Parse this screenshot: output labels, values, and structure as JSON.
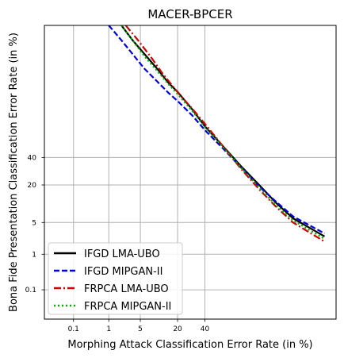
{
  "chart_data": {
    "type": "line",
    "title": "MACER-BPCER",
    "xlabel": "Morphing Attack Classification Error Rate (in %)",
    "ylabel": "Bona Fide Presentation Classification Error Rate (in %)",
    "scale": "probit",
    "xlim": [
      0.01,
      99.5
    ],
    "ylim": [
      0.01,
      99.5
    ],
    "xticks": [
      0.1,
      1,
      5,
      20,
      40
    ],
    "yticks": [
      0.1,
      1,
      5,
      20,
      40
    ],
    "grid": true,
    "legend_position": "lower-left",
    "series": [
      {
        "name": "IFGD LMA-UBO",
        "color": "#000000",
        "style": "solid",
        "x": [
          2.0,
          3.5,
          6.0,
          10.0,
          15.0,
          20.0,
          30.0,
          40.0,
          55.0,
          70.0,
          82.0,
          90.0,
          95.0,
          99.0
        ],
        "y": [
          99.5,
          98.8,
          97.5,
          95.0,
          91.0,
          87.5,
          78.0,
          66.0,
          50.0,
          33.0,
          20.0,
          11.0,
          6.0,
          2.6
        ]
      },
      {
        "name": "IFGD MIPGAN-II",
        "color": "#0000dd",
        "style": "dashed",
        "x": [
          1.0,
          2.0,
          3.5,
          6.0,
          10.0,
          15.0,
          20.0,
          30.0,
          40.0,
          55.0,
          70.0,
          82.0,
          90.0,
          95.0,
          99.0
        ],
        "y": [
          99.5,
          98.8,
          97.5,
          95.0,
          91.5,
          87.0,
          83.0,
          74.0,
          63.0,
          48.0,
          32.0,
          19.0,
          11.5,
          6.5,
          3.0
        ]
      },
      {
        "name": "FRPCA LMA-UBO",
        "color": "#cc0000",
        "style": "dashdot",
        "x": [
          2.5,
          4.5,
          8.0,
          12.0,
          17.0,
          22.0,
          30.0,
          40.0,
          55.0,
          70.0,
          82.0,
          90.0,
          95.0,
          99.0
        ],
        "y": [
          99.5,
          98.8,
          97.0,
          94.0,
          90.0,
          85.5,
          78.5,
          68.0,
          50.0,
          31.0,
          17.5,
          9.5,
          5.0,
          2.0
        ]
      },
      {
        "name": "FRPCA MIPGAN-II",
        "color": "#00aa00",
        "style": "dotted",
        "x": [
          2.0,
          3.5,
          6.0,
          10.0,
          15.0,
          20.0,
          30.0,
          40.0,
          55.0,
          70.0,
          82.0,
          90.0,
          95.0,
          99.0
        ],
        "y": [
          99.5,
          98.8,
          97.2,
          94.5,
          90.5,
          86.5,
          77.0,
          65.5,
          49.5,
          32.0,
          18.5,
          10.0,
          5.5,
          2.3
        ]
      }
    ]
  }
}
